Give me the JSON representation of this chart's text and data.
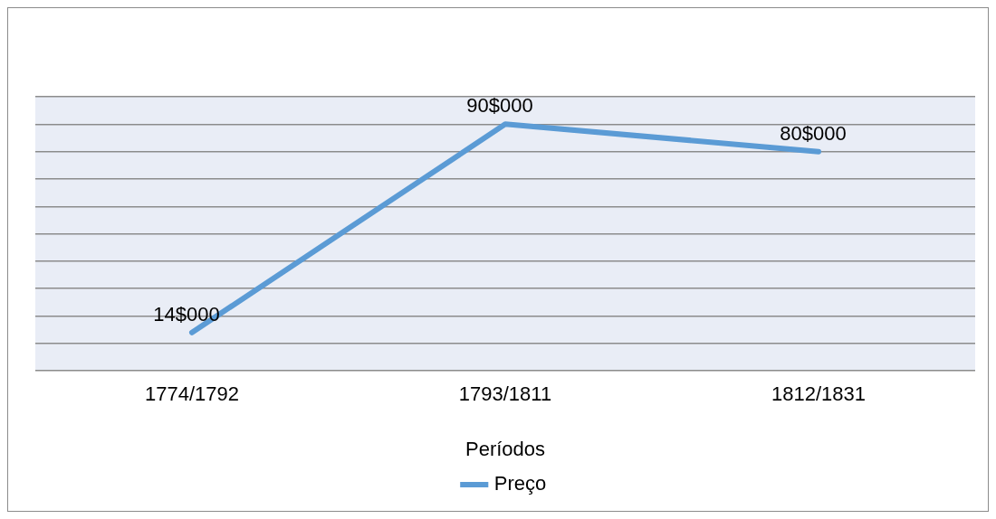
{
  "chart_data": {
    "type": "line",
    "xlabel": "Períodos",
    "categories": [
      "1774/1792",
      "1793/1811",
      "1812/1831"
    ],
    "series": [
      {
        "name": "Preço",
        "color": "#5b9bd5",
        "values": [
          14,
          90,
          80
        ],
        "value_labels": [
          "14$000",
          "90$000",
          "80$000"
        ]
      }
    ],
    "ylim": [
      0,
      100
    ],
    "yticks": [
      {
        "value": 0,
        "label": null
      },
      {
        "value": 10,
        "label": null
      },
      {
        "value": 20,
        "label": null
      },
      {
        "value": 30,
        "label": null
      },
      {
        "value": 40,
        "label": null
      },
      {
        "value": 50,
        "label": null
      },
      {
        "value": 60,
        "label": null
      },
      {
        "value": 70,
        "label": null
      },
      {
        "value": 80,
        "label": null
      },
      {
        "value": 90,
        "label": null
      },
      {
        "value": 100,
        "label": null
      }
    ],
    "tick_labels": "x",
    "grid": "y",
    "legend": "bottom",
    "marker": "none",
    "line_style": "solid"
  }
}
